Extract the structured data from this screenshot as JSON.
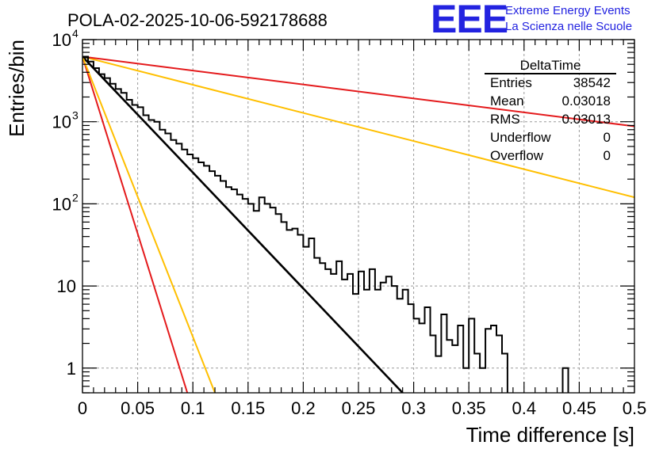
{
  "chart_data": {
    "type": "line",
    "title": "POLA-02-2025-10-06-592178688",
    "xlabel": "Time difference [s]",
    "ylabel": "Entries/bin",
    "xlim": [
      0,
      0.5
    ],
    "ylim": [
      0.5,
      10000
    ],
    "ylog": true,
    "grid": true,
    "x_ticks": [
      "0",
      "0.05",
      "0.1",
      "0.15",
      "0.2",
      "0.25",
      "0.3",
      "0.35",
      "0.4",
      "0.45",
      "0.5"
    ],
    "x_tick_values": [
      0,
      0.05,
      0.1,
      0.15,
      0.2,
      0.25,
      0.3,
      0.35,
      0.4,
      0.45,
      0.5
    ],
    "y_ticks": [
      {
        "value": 10000,
        "base": "10",
        "exp": "4"
      },
      {
        "value": 1000,
        "base": "10",
        "exp": "3"
      },
      {
        "value": 100,
        "base": "10",
        "exp": "2"
      },
      {
        "value": 10,
        "base": "10",
        "exp": ""
      },
      {
        "value": 1,
        "base": "1",
        "exp": ""
      }
    ],
    "histogram": {
      "name": "DeltaTime",
      "bin_width": 0.005,
      "x_start": 0,
      "values": [
        6200,
        5400,
        4500,
        3800,
        3400,
        2900,
        2500,
        2250,
        1850,
        1600,
        1500,
        1200,
        1050,
        1000,
        800,
        720,
        600,
        540,
        460,
        400,
        360,
        320,
        290,
        250,
        220,
        190,
        160,
        150,
        130,
        115,
        100,
        82,
        120,
        100,
        90,
        75,
        60,
        48,
        50,
        42,
        30,
        38,
        22,
        19,
        16,
        14,
        20,
        12,
        14,
        8,
        15,
        9,
        16,
        9,
        11,
        13,
        10,
        7,
        9,
        6,
        4,
        3.5,
        5.5,
        2.5,
        1.4,
        4.5,
        2.2,
        1.9,
        3.3,
        1,
        4,
        1.5,
        1,
        3,
        3.3,
        2.5,
        1.5,
        0,
        0,
        0,
        0.4,
        0,
        0,
        0,
        0,
        0,
        0,
        1,
        0,
        0,
        0,
        0,
        0,
        0,
        0,
        0,
        0,
        0,
        0,
        0
      ]
    },
    "series": [
      {
        "name": "fit",
        "color": "#000000",
        "points": [
          [
            0,
            6200
          ],
          [
            0.29,
            0.5
          ]
        ]
      },
      {
        "name": "red-steep",
        "color": "#e41a1c",
        "points": [
          [
            0,
            6200
          ],
          [
            0.095,
            0.5
          ]
        ]
      },
      {
        "name": "orange-steep",
        "color": "#ffbf00",
        "points": [
          [
            0,
            6200
          ],
          [
            0.12,
            0.5
          ]
        ]
      },
      {
        "name": "orange-flat",
        "color": "#ffbf00",
        "points": [
          [
            0,
            6200
          ],
          [
            0.5,
            120
          ]
        ]
      },
      {
        "name": "red-flat",
        "color": "#e41a1c",
        "points": [
          [
            0,
            6200
          ],
          [
            0.5,
            880
          ]
        ]
      }
    ],
    "stats": {
      "title": "DeltaTime",
      "rows": [
        {
          "label": "Entries",
          "value": "38542"
        },
        {
          "label": "Mean",
          "value": "0.03018"
        },
        {
          "label": "RMS",
          "value": "0.03013"
        },
        {
          "label": "Underflow",
          "value": "0"
        },
        {
          "label": "Overflow",
          "value": "0"
        }
      ]
    }
  },
  "brand": {
    "logo": "EEE",
    "line1": "Extreme Energy Events",
    "line2": "La Scienza nelle Scuole",
    "color": "#2323e0"
  }
}
